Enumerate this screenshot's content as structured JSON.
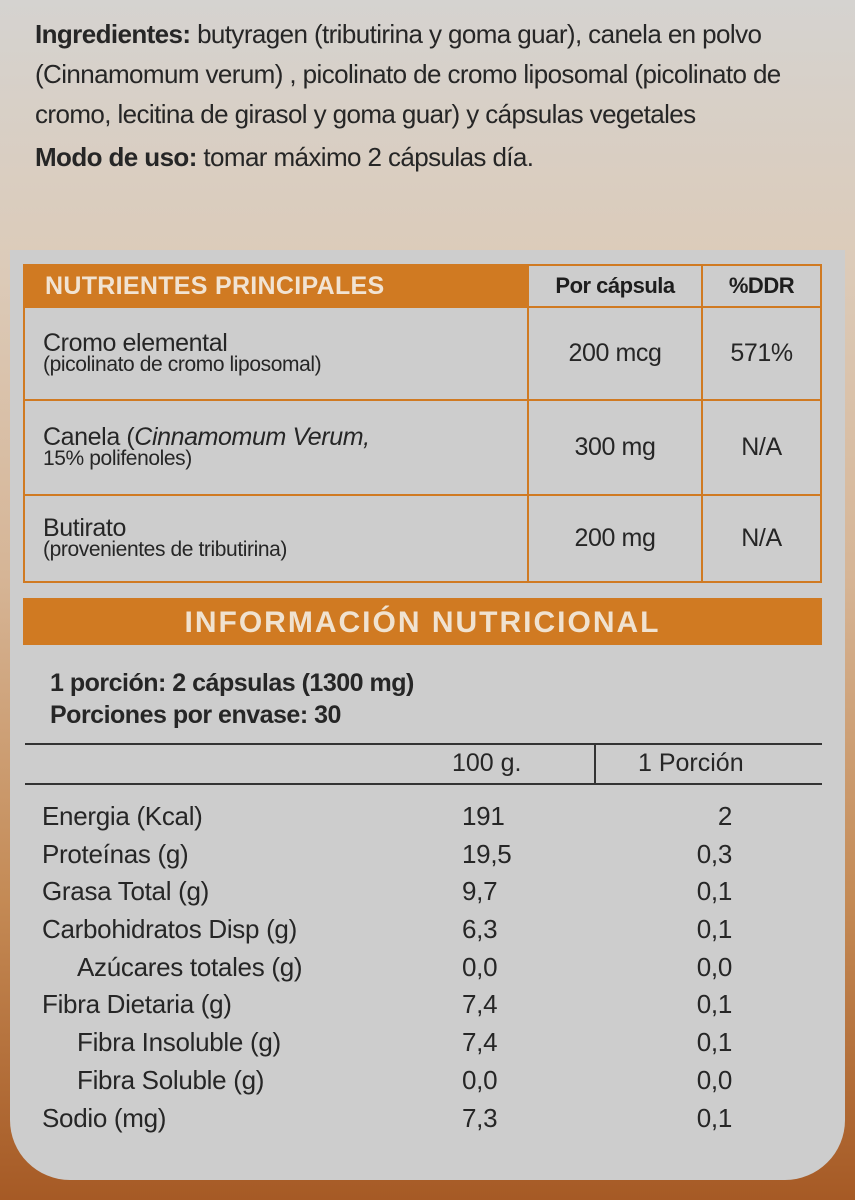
{
  "intro": {
    "ingredients_label": "Ingredientes:",
    "ingredients_text": " butyragen (tributirina y goma guar), canela en polvo (Cinnamomum verum) , picolinato de cromo liposomal (picolinato de cromo, lecitina de girasol y goma guar) y cápsulas vegetales",
    "usage_label": "Modo de uso:",
    "usage_text": " tomar máximo 2 cápsulas día."
  },
  "main_table": {
    "headers": [
      "NUTRIENTES PRINCIPALES",
      "Por cápsula",
      "%DDR"
    ],
    "rows": [
      {
        "name": "Cromo elemental",
        "italic": "",
        "sub": "(picolinato de cromo liposomal)",
        "per_capsule": "200 mcg",
        "ddr": "571%"
      },
      {
        "name": "Canela (",
        "italic": "Cinnamomum Verum,",
        "sub": "15% polifenoles)",
        "per_capsule": "300 mg",
        "ddr": "N/A"
      },
      {
        "name": "Butirato",
        "italic": "",
        "sub": "(provenientes de tributirina)",
        "per_capsule": "200 mg",
        "ddr": "N/A"
      }
    ]
  },
  "nutrition": {
    "title": "INFORMACIÓN NUTRICIONAL",
    "portion": "1 porción: 2 cápsulas (1300 mg)",
    "servings": "Porciones por envase: 30",
    "col_100g": "100 g.",
    "col_portion": "1 Porción",
    "rows": [
      {
        "label": "Energia (Kcal)",
        "v100": "191",
        "vp": "2",
        "indent": false
      },
      {
        "label": "Proteínas (g)",
        "v100": "19,5",
        "vp": "0,3",
        "indent": false
      },
      {
        "label": "Grasa Total (g)",
        "v100": "9,7",
        "vp": "0,1",
        "indent": false
      },
      {
        "label": "Carbohidratos Disp (g)",
        "v100": "6,3",
        "vp": "0,1",
        "indent": false
      },
      {
        "label": "Azúcares totales (g)",
        "v100": "0,0",
        "vp": "0,0",
        "indent": true
      },
      {
        "label": "Fibra Dietaria (g)",
        "v100": "7,4",
        "vp": "0,1",
        "indent": false
      },
      {
        "label": "Fibra Insoluble (g)",
        "v100": "7,4",
        "vp": "0,1",
        "indent": true
      },
      {
        "label": "Fibra Soluble (g)",
        "v100": "0,0",
        "vp": "0,0",
        "indent": true
      },
      {
        "label": "Sodio (mg)",
        "v100": "7,3",
        "vp": "0,1",
        "indent": false
      }
    ]
  },
  "colors": {
    "accent": "#d07a22",
    "panel": "#cdcdcd",
    "bottom": "#a65a25"
  }
}
